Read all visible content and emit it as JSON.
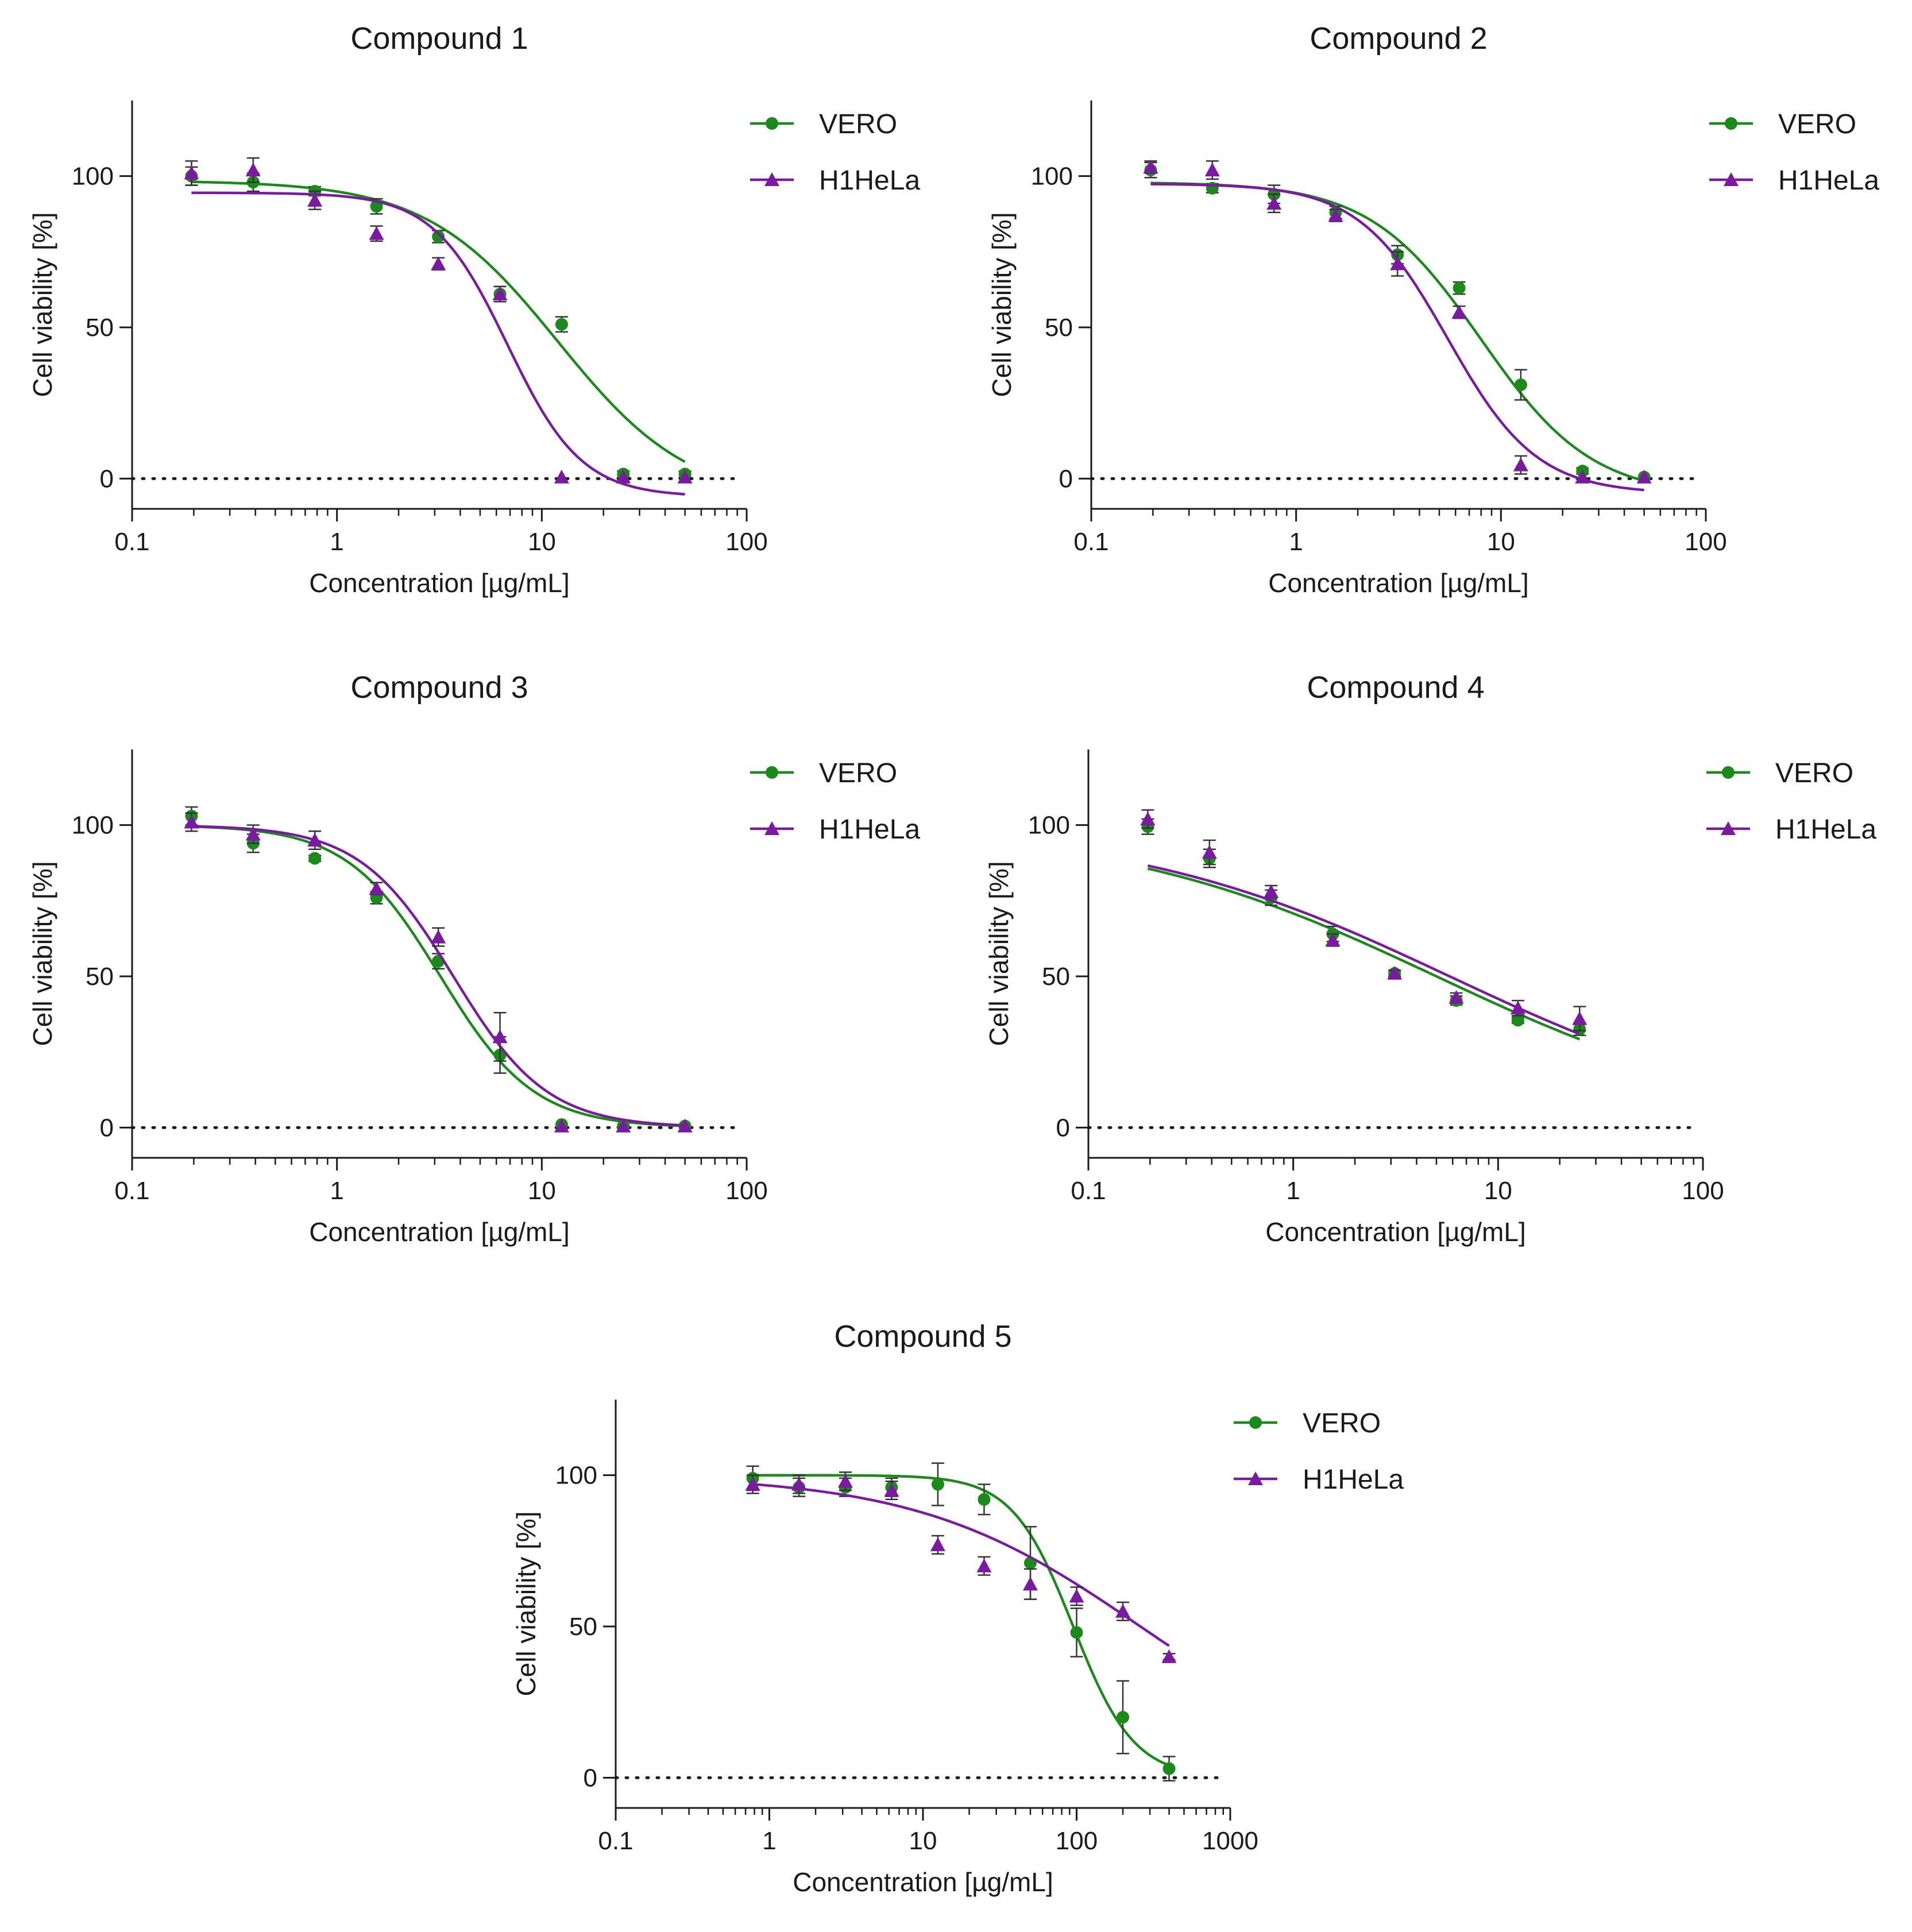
{
  "chart_data": [
    {
      "type": "scatter",
      "title": "Compound 1",
      "xlabel": "Concentration [µg/mL]",
      "ylabel": "Cell viability [%]",
      "xscale": "log",
      "xlim": [
        0.1,
        100
      ],
      "ylim": [
        -10,
        125
      ],
      "xticks": [
        0.1,
        1,
        10,
        100
      ],
      "xtick_labels": [
        "0.1",
        "1",
        "10",
        "100"
      ],
      "yticks": [
        0,
        50,
        100
      ],
      "ytick_labels": [
        "0",
        "50",
        "100"
      ],
      "reference_line": 0,
      "legend_position": "top-right",
      "series": [
        {
          "name": "VERO",
          "marker": "circle",
          "color": "#1a8a1a",
          "x": [
            0.195,
            0.39,
            0.78,
            1.56,
            3.125,
            6.25,
            12.5,
            25,
            50
          ],
          "y": [
            100,
            98,
            95,
            90,
            80,
            61,
            51,
            1.5,
            1.5
          ],
          "err": [
            3,
            3,
            1.5,
            2.5,
            2,
            2.5,
            2.5,
            1,
            1
          ],
          "fit": {
            "top": 98.5,
            "bottom": -8,
            "ec50": 12,
            "hill": 1.35,
            "xmin": 0.195,
            "xmax": 50
          }
        },
        {
          "name": "H1HeLa",
          "marker": "triangle",
          "color": "#7a1aa0",
          "x": [
            0.195,
            0.39,
            0.78,
            1.56,
            3.125,
            6.25,
            12.5,
            25,
            50
          ],
          "y": [
            101,
            102,
            92,
            81,
            71,
            61,
            0.5,
            0.5,
            0.5
          ],
          "err": [
            4,
            4,
            3,
            2.5,
            2,
            2.5,
            0.5,
            0.5,
            0.5
          ],
          "fit": {
            "top": 94.5,
            "bottom": -6,
            "ec50": 6.8,
            "hill": 2.4,
            "xmin": 0.195,
            "xmax": 50
          }
        }
      ]
    },
    {
      "type": "scatter",
      "title": "Compound 2",
      "xlabel": "Concentration [µg/mL]",
      "ylabel": "Cell viability [%]",
      "xscale": "log",
      "xlim": [
        0.1,
        100
      ],
      "ylim": [
        -10,
        125
      ],
      "xticks": [
        0.1,
        1,
        10,
        100
      ],
      "xtick_labels": [
        "0.1",
        "1",
        "10",
        "100"
      ],
      "yticks": [
        0,
        50,
        100
      ],
      "ytick_labels": [
        "0",
        "50",
        "100"
      ],
      "reference_line": 0,
      "legend_position": "top-right",
      "series": [
        {
          "name": "VERO",
          "marker": "circle",
          "color": "#1a8a1a",
          "x": [
            0.195,
            0.39,
            0.78,
            1.56,
            3.125,
            6.25,
            12.5,
            25,
            50
          ],
          "y": [
            102,
            96,
            94,
            88,
            74,
            63,
            31,
            2.5,
            0.5
          ],
          "err": [
            2.5,
            1.5,
            3,
            2,
            3,
            2,
            5,
            1,
            0.5
          ],
          "fit": {
            "top": 98,
            "bottom": -6,
            "ec50": 8,
            "hill": 1.6,
            "xmin": 0.195,
            "xmax": 50
          }
        },
        {
          "name": "H1HeLa",
          "marker": "triangle",
          "color": "#7a1aa0",
          "x": [
            0.195,
            0.39,
            0.78,
            1.56,
            3.125,
            6.25,
            12.5,
            25,
            50
          ],
          "y": [
            103,
            102,
            91,
            87,
            71,
            55,
            4.5,
            0.5,
            0.5
          ],
          "err": [
            2,
            3,
            3,
            2,
            4,
            2,
            3,
            0.5,
            0.5
          ],
          "fit": {
            "top": 97.5,
            "bottom": -5,
            "ec50": 5.5,
            "hill": 2.0,
            "xmin": 0.195,
            "xmax": 50
          }
        }
      ]
    },
    {
      "type": "scatter",
      "title": "Compound 3",
      "xlabel": "Concentration [µg/mL]",
      "ylabel": "Cell viability [%]",
      "xscale": "log",
      "xlim": [
        0.1,
        100
      ],
      "ylim": [
        -10,
        125
      ],
      "xticks": [
        0.1,
        1,
        10,
        100
      ],
      "xtick_labels": [
        "0.1",
        "1",
        "10",
        "100"
      ],
      "yticks": [
        0,
        50,
        100
      ],
      "ytick_labels": [
        "0",
        "50",
        "100"
      ],
      "reference_line": 0,
      "legend_position": "top-right",
      "series": [
        {
          "name": "VERO",
          "marker": "circle",
          "color": "#1a8a1a",
          "x": [
            0.195,
            0.39,
            0.78,
            1.56,
            3.125,
            6.25,
            12.5,
            25,
            50
          ],
          "y": [
            103,
            94,
            89,
            76,
            55,
            24,
            1,
            0.5,
            0.5
          ],
          "err": [
            3,
            3,
            1,
            2,
            2.5,
            6,
            0.5,
            0.5,
            0.5
          ],
          "fit": {
            "top": 100,
            "bottom": 0,
            "ec50": 3.2,
            "hill": 1.9,
            "xmin": 0.195,
            "xmax": 50
          }
        },
        {
          "name": "H1HeLa",
          "marker": "triangle",
          "color": "#7a1aa0",
          "x": [
            0.195,
            0.39,
            0.78,
            1.56,
            3.125,
            6.25,
            12.5,
            25,
            50
          ],
          "y": [
            101,
            97,
            95,
            79,
            63,
            30,
            0.5,
            0.5,
            0.5
          ],
          "err": [
            3,
            3,
            3,
            2,
            3,
            8,
            0.5,
            0.5,
            0.5
          ],
          "fit": {
            "top": 100,
            "bottom": 0,
            "ec50": 3.7,
            "hill": 1.9,
            "xmin": 0.195,
            "xmax": 50
          }
        }
      ]
    },
    {
      "type": "scatter",
      "title": "Compound 4",
      "xlabel": "Concentration [µg/mL]",
      "ylabel": "Cell viability [%]",
      "xscale": "log",
      "xlim": [
        0.1,
        100
      ],
      "ylim": [
        -10,
        125
      ],
      "xticks": [
        0.1,
        1,
        10,
        100
      ],
      "xtick_labels": [
        "0.1",
        "1",
        "10",
        "100"
      ],
      "yticks": [
        0,
        50,
        100
      ],
      "ytick_labels": [
        "0",
        "50",
        "100"
      ],
      "reference_line": 0,
      "legend_position": "top-right",
      "series": [
        {
          "name": "VERO",
          "marker": "circle",
          "color": "#1a8a1a",
          "x": [
            0.195,
            0.39,
            0.78,
            1.56,
            3.125,
            6.25,
            12.5,
            25
          ],
          "y": [
            99.5,
            89,
            76,
            64,
            51,
            42,
            35.5,
            32.5
          ],
          "err": [
            2.5,
            3,
            2.5,
            2.5,
            1,
            1.5,
            1,
            2
          ],
          "fit": {
            "top": 100,
            "bottom": 0,
            "ec50": 5.0,
            "hill": 0.55,
            "xmin": 0.195,
            "xmax": 25
          }
        },
        {
          "name": "H1HeLa",
          "marker": "triangle",
          "color": "#7a1aa0",
          "x": [
            0.195,
            0.39,
            0.78,
            1.56,
            3.125,
            6.25,
            12.5,
            25
          ],
          "y": [
            102,
            91,
            78,
            62,
            51,
            43,
            39.5,
            36
          ],
          "err": [
            3,
            4,
            2,
            2,
            1,
            1.5,
            2.5,
            4
          ],
          "fit": {
            "top": 100,
            "bottom": 0,
            "ec50": 5.8,
            "hill": 0.55,
            "xmin": 0.195,
            "xmax": 25
          }
        }
      ]
    },
    {
      "type": "scatter",
      "title": "Compound 5",
      "xlabel": "Concentration [µg/mL]",
      "ylabel": "Cell viability [%]",
      "xscale": "log",
      "xlim": [
        0.1,
        1000
      ],
      "ylim": [
        -10,
        125
      ],
      "xticks": [
        0.1,
        1,
        10,
        100,
        1000
      ],
      "xtick_labels": [
        "0.1",
        "1",
        "10",
        "100",
        "1000"
      ],
      "yticks": [
        0,
        50,
        100
      ],
      "ytick_labels": [
        "0",
        "50",
        "100"
      ],
      "reference_line": 0,
      "legend_position": "top-right",
      "series": [
        {
          "name": "VERO",
          "marker": "circle",
          "color": "#1a8a1a",
          "x": [
            0.78,
            1.56,
            3.125,
            6.25,
            12.5,
            25,
            50,
            100,
            200,
            400
          ],
          "y": [
            99,
            96,
            96,
            96,
            97,
            92,
            71,
            48,
            20,
            3
          ],
          "err": [
            4,
            3,
            3,
            3,
            7,
            5,
            12,
            8,
            12,
            4
          ],
          "fit": {
            "top": 100,
            "bottom": 0,
            "ec50": 95,
            "hill": 2.2,
            "xmin": 0.78,
            "xmax": 400
          }
        },
        {
          "name": "H1HeLa",
          "marker": "triangle",
          "color": "#7a1aa0",
          "x": [
            0.78,
            1.56,
            3.125,
            6.25,
            12.5,
            25,
            50,
            100,
            200,
            400
          ],
          "y": [
            97,
            97,
            98,
            95,
            77,
            70,
            64,
            60,
            55,
            40
          ],
          "err": [
            3,
            3,
            3,
            3,
            3,
            3,
            5,
            3,
            3,
            1
          ],
          "fit": {
            "top": 100,
            "bottom": 0,
            "ec50": 260,
            "hill": 0.6,
            "xmin": 0.78,
            "xmax": 400
          }
        }
      ]
    }
  ]
}
